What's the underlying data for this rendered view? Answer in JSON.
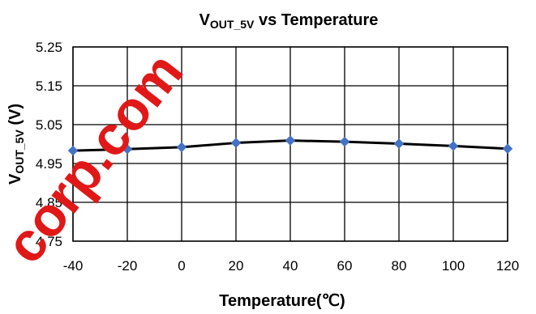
{
  "watermark": {
    "text": "corp.com",
    "color": "#e01818"
  },
  "chart_data": {
    "type": "line",
    "title": {
      "main": "V",
      "sub": "OUT_5V",
      "rest": " vs Temperature"
    },
    "xlabel": "Temperature(℃)",
    "ylabel": {
      "main": "V",
      "sub": "OUT_5V",
      "rest": " (V)"
    },
    "xlim": [
      -40,
      120
    ],
    "ylim": [
      4.75,
      5.25
    ],
    "x_ticks": [
      "-40",
      "-20",
      "0",
      "20",
      "40",
      "60",
      "80",
      "100",
      "120"
    ],
    "y_ticks": [
      "5.25",
      "5.15",
      "5.05",
      "4.95",
      "4.85",
      "4.75"
    ],
    "x_tick_values": [
      -40,
      -20,
      0,
      20,
      40,
      60,
      80,
      100,
      120
    ],
    "y_tick_values": [
      5.25,
      5.15,
      5.05,
      4.95,
      4.85,
      4.75
    ],
    "grid": true,
    "series": [
      {
        "line_color": "#000000",
        "marker_color": "#4472c4",
        "marker": "diamond",
        "x": [
          -40,
          -20,
          0,
          20,
          40,
          60,
          80,
          100,
          120
        ],
        "y": [
          4.983,
          4.987,
          4.992,
          5.003,
          5.009,
          5.006,
          5.001,
          4.995,
          4.988
        ]
      }
    ]
  }
}
